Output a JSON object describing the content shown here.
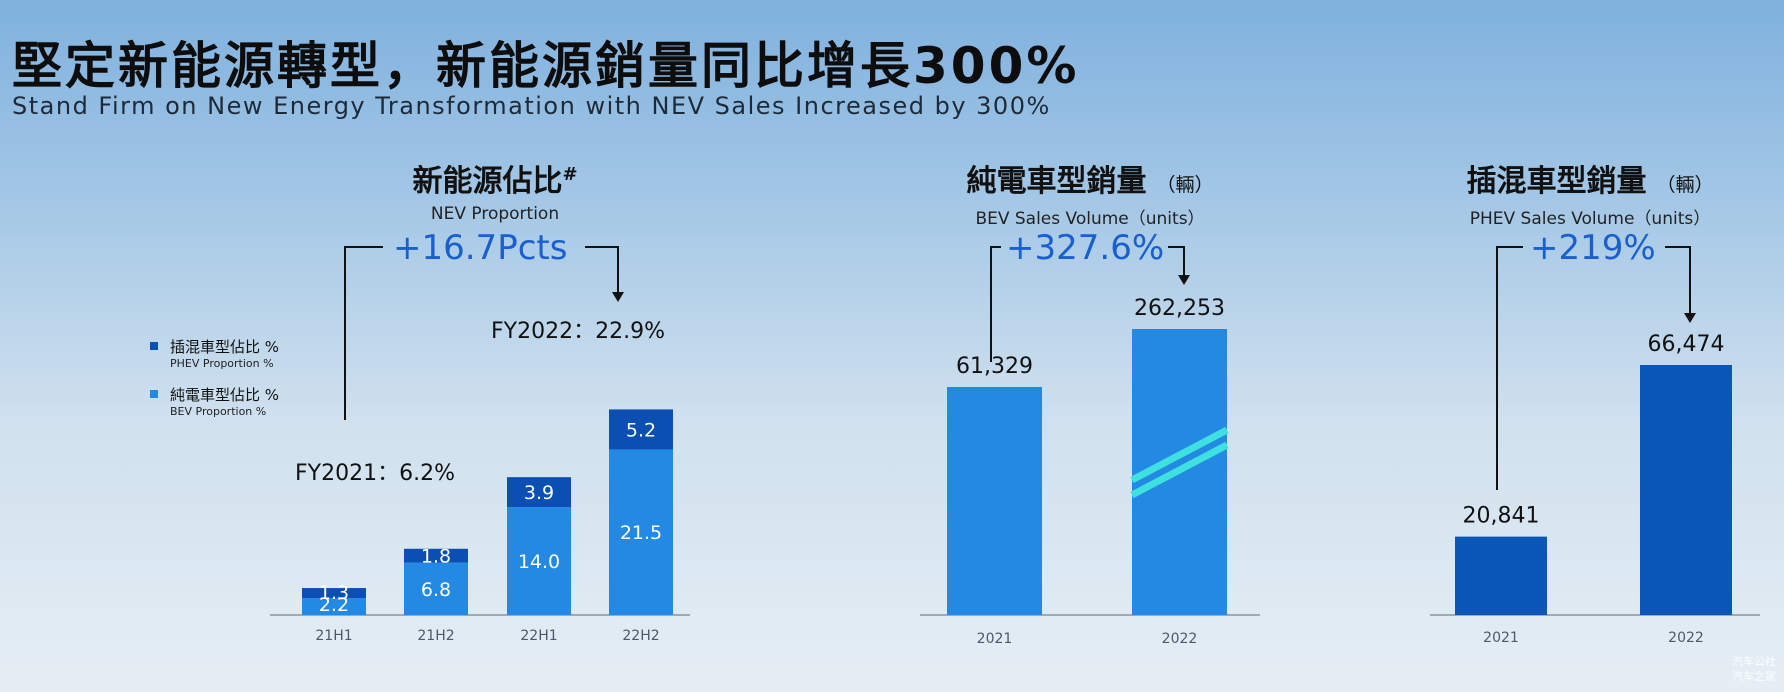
{
  "header": {
    "title": "堅定新能源轉型，新能源銷量同比增長300%",
    "subtitle": "Stand Firm on New Energy Transformation with NEV Sales Increased by 300%"
  },
  "colors": {
    "bev": "#2389e3",
    "phev": "#0b4fb2",
    "phev_bar": "#0a57b8",
    "growth_text": "#1a5fcf",
    "accent_stripe": "#3fe0e0"
  },
  "panels": {
    "nev": {
      "title_cn": "新能源佔比",
      "title_mark": "#",
      "title_en": "NEV Proportion",
      "growth": "+16.7Pcts",
      "fy2021": "FY2021：6.2%",
      "fy2022": "FY2022：22.9%"
    },
    "bev": {
      "title_cn": "純電車型銷量",
      "unit_cn": "（輛）",
      "title_en": "BEV Sales Volume（units）",
      "growth": "+327.6%"
    },
    "phev": {
      "title_cn": "插混車型銷量",
      "unit_cn": "（輛）",
      "title_en": "PHEV Sales Volume（units）",
      "growth": "+219%"
    }
  },
  "legend": [
    {
      "cn": "插混車型佔比 %",
      "en": "PHEV Proportion %",
      "color_key": "phev"
    },
    {
      "cn": "純電車型佔比 %",
      "en": "BEV Proportion %",
      "color_key": "bev"
    }
  ],
  "watermark": {
    "line1": "汽车公社",
    "line2": "汽车之家"
  },
  "chart_data": [
    {
      "type": "bar",
      "stacked": true,
      "title": "新能源佔比#",
      "subtitle": "NEV Proportion",
      "categories": [
        "21H1",
        "21H2",
        "22H1",
        "22H2"
      ],
      "series": [
        {
          "name": "純電車型佔比 %",
          "values": [
            2.2,
            6.8,
            14.0,
            21.5
          ],
          "labels": [
            "2.2",
            "6.8",
            "14.0",
            "21.5"
          ]
        },
        {
          "name": "插混車型佔比 %",
          "values": [
            1.3,
            1.8,
            3.9,
            5.2
          ],
          "labels": [
            "1.3",
            "1.8",
            "3.9",
            "5.2"
          ]
        }
      ],
      "ylim": [
        0,
        30
      ],
      "annotations": [
        "FY2021：6.2%",
        "FY2022：22.9%",
        "+16.7Pcts"
      ],
      "legend": "left",
      "grid": false
    },
    {
      "type": "bar",
      "title": "純電車型銷量（輛）",
      "subtitle": "BEV Sales Volume（units）",
      "categories": [
        "2021",
        "2022"
      ],
      "values": [
        61329,
        262253
      ],
      "labels": [
        "61,329",
        "262,253"
      ],
      "axis_break": true,
      "annotations": [
        "+327.6%"
      ],
      "grid": false
    },
    {
      "type": "bar",
      "title": "插混車型銷量（輛）",
      "subtitle": "PHEV Sales Volume（units）",
      "categories": [
        "2021",
        "2022"
      ],
      "values": [
        20841,
        66474
      ],
      "labels": [
        "20,841",
        "66,474"
      ],
      "annotations": [
        "+219%"
      ],
      "grid": false
    }
  ]
}
